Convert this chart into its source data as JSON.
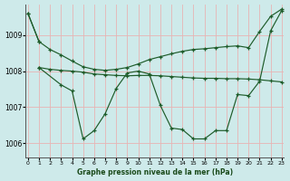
{
  "xlabel": "Graphe pression niveau de la mer (hPa)",
  "ylim": [
    1005.6,
    1009.85
  ],
  "yticks": [
    1006,
    1007,
    1008,
    1009
  ],
  "xlim": [
    -0.2,
    23.2
  ],
  "xticks": [
    0,
    1,
    2,
    3,
    4,
    5,
    6,
    7,
    8,
    9,
    10,
    11,
    12,
    13,
    14,
    15,
    16,
    17,
    18,
    19,
    20,
    21,
    22,
    23
  ],
  "bg_color": "#ceeaea",
  "line_color": "#1e5c2a",
  "grid_color": "#e8b4b4",
  "series": [
    {
      "x": [
        0,
        1
      ],
      "y": [
        1009.6,
        1008.82
      ]
    },
    {
      "x": [
        0,
        1,
        2,
        3,
        4,
        5,
        6,
        7,
        8,
        9,
        10,
        11,
        12,
        13,
        14,
        15,
        16,
        17,
        18,
        19,
        20,
        21,
        22,
        23
      ],
      "y": [
        1009.6,
        1008.82,
        1008.6,
        1008.45,
        1008.28,
        1008.12,
        1008.05,
        1008.02,
        1008.05,
        1008.1,
        1008.2,
        1008.32,
        1008.4,
        1008.48,
        1008.55,
        1008.6,
        1008.62,
        1008.65,
        1008.68,
        1008.7,
        1008.65,
        1009.1,
        1009.52,
        1009.72
      ]
    },
    {
      "x": [
        1,
        2,
        3,
        4,
        5,
        6,
        7,
        8,
        9,
        10,
        11,
        12,
        13,
        14,
        15,
        16,
        17,
        18,
        19,
        20,
        21,
        22,
        23
      ],
      "y": [
        1008.1,
        1008.05,
        1008.02,
        1008.0,
        1007.97,
        1007.92,
        1007.9,
        1007.88,
        1007.87,
        1007.88,
        1007.88,
        1007.87,
        1007.85,
        1007.83,
        1007.81,
        1007.8,
        1007.8,
        1007.79,
        1007.79,
        1007.78,
        1007.76,
        1007.73,
        1007.7
      ]
    },
    {
      "x": [
        1,
        3,
        4,
        5,
        6,
        7,
        8,
        9,
        10,
        11,
        12,
        13,
        14,
        15,
        16,
        17,
        18,
        19,
        20,
        21,
        22,
        23
      ],
      "y": [
        1008.1,
        1007.62,
        1007.45,
        1006.12,
        1006.35,
        1006.82,
        1007.52,
        1007.95,
        1008.0,
        1007.92,
        1007.05,
        1006.42,
        1006.38,
        1006.12,
        1006.12,
        1006.35,
        1006.35,
        1007.35,
        1007.32,
        1007.72,
        1009.12,
        1009.68
      ]
    }
  ]
}
